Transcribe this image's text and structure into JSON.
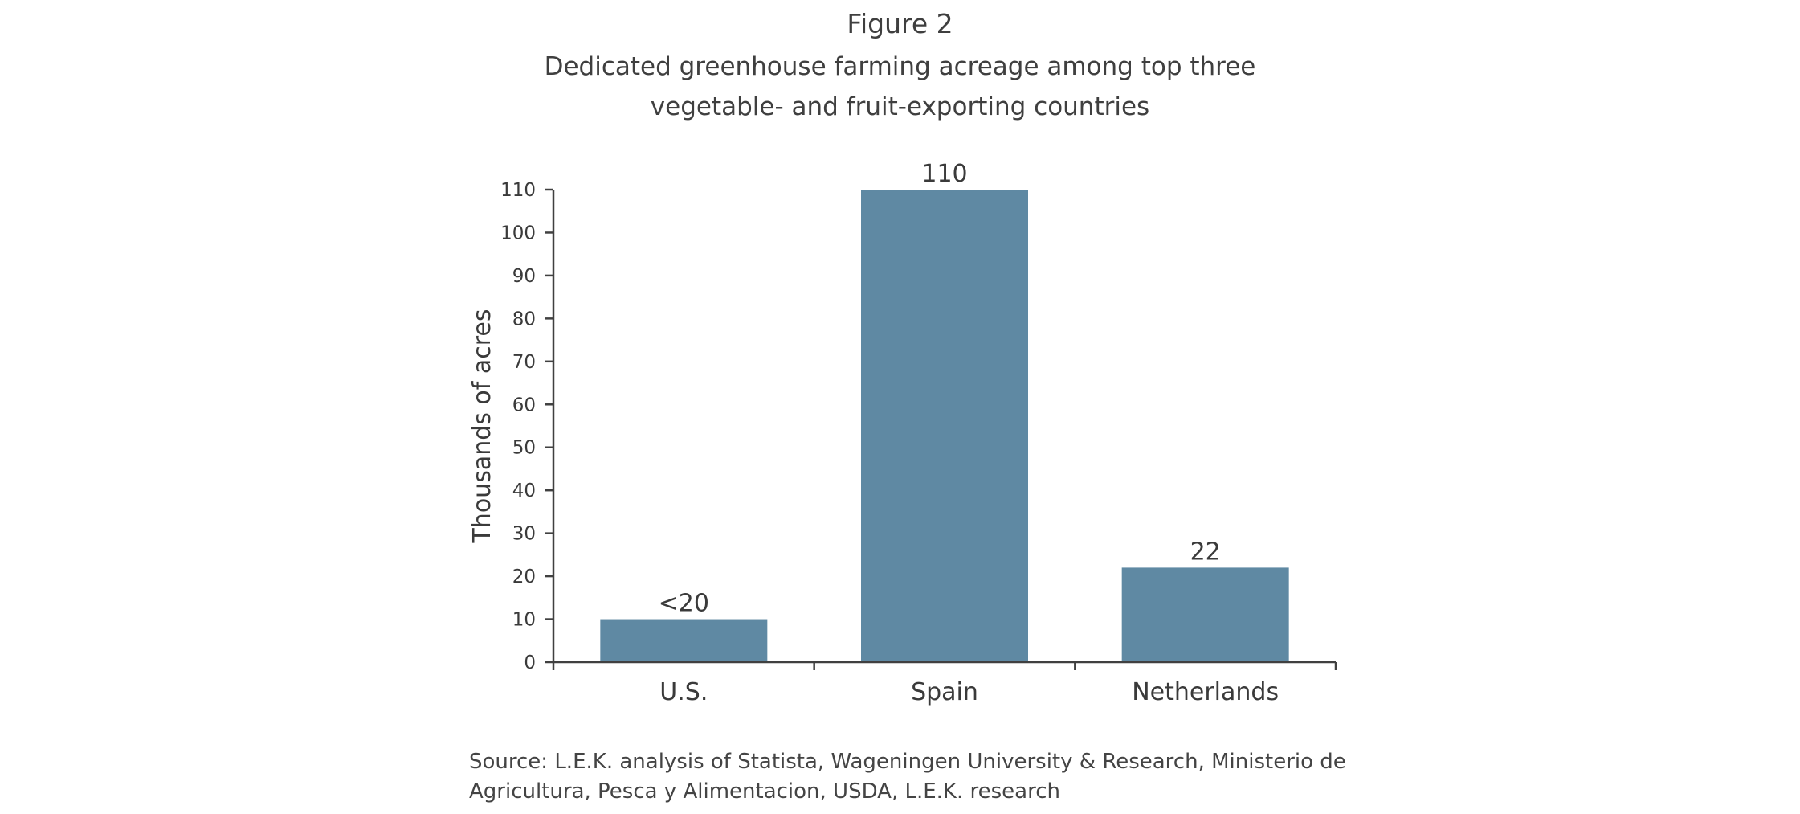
{
  "figure": {
    "label": "Figure 2",
    "title_line1": "Dedicated greenhouse farming acreage among top three",
    "title_line2": "vegetable- and fruit-exporting countries",
    "source_line1": "Source: L.E.K. analysis of Statista, Wageningen University & Research, Ministerio de",
    "source_line2": "Agricultura, Pesca y Alimentacion, USDA, L.E.K. research"
  },
  "chart_data": {
    "type": "bar",
    "title": "Dedicated greenhouse farming acreage among top three vegetable- and fruit-exporting countries",
    "categories": [
      "U.S.",
      "Spain",
      "Netherlands"
    ],
    "values": [
      10,
      110,
      22
    ],
    "data_labels": [
      "<20",
      "110",
      "22"
    ],
    "xlabel": "",
    "ylabel": "Thousands of acres",
    "ylim": [
      0,
      110
    ],
    "yticks": [
      0,
      10,
      20,
      30,
      40,
      50,
      60,
      70,
      80,
      90,
      100,
      110
    ],
    "grid": false,
    "legend": "none",
    "bar_color": "#5f89a3",
    "axis_color": "#404040"
  }
}
